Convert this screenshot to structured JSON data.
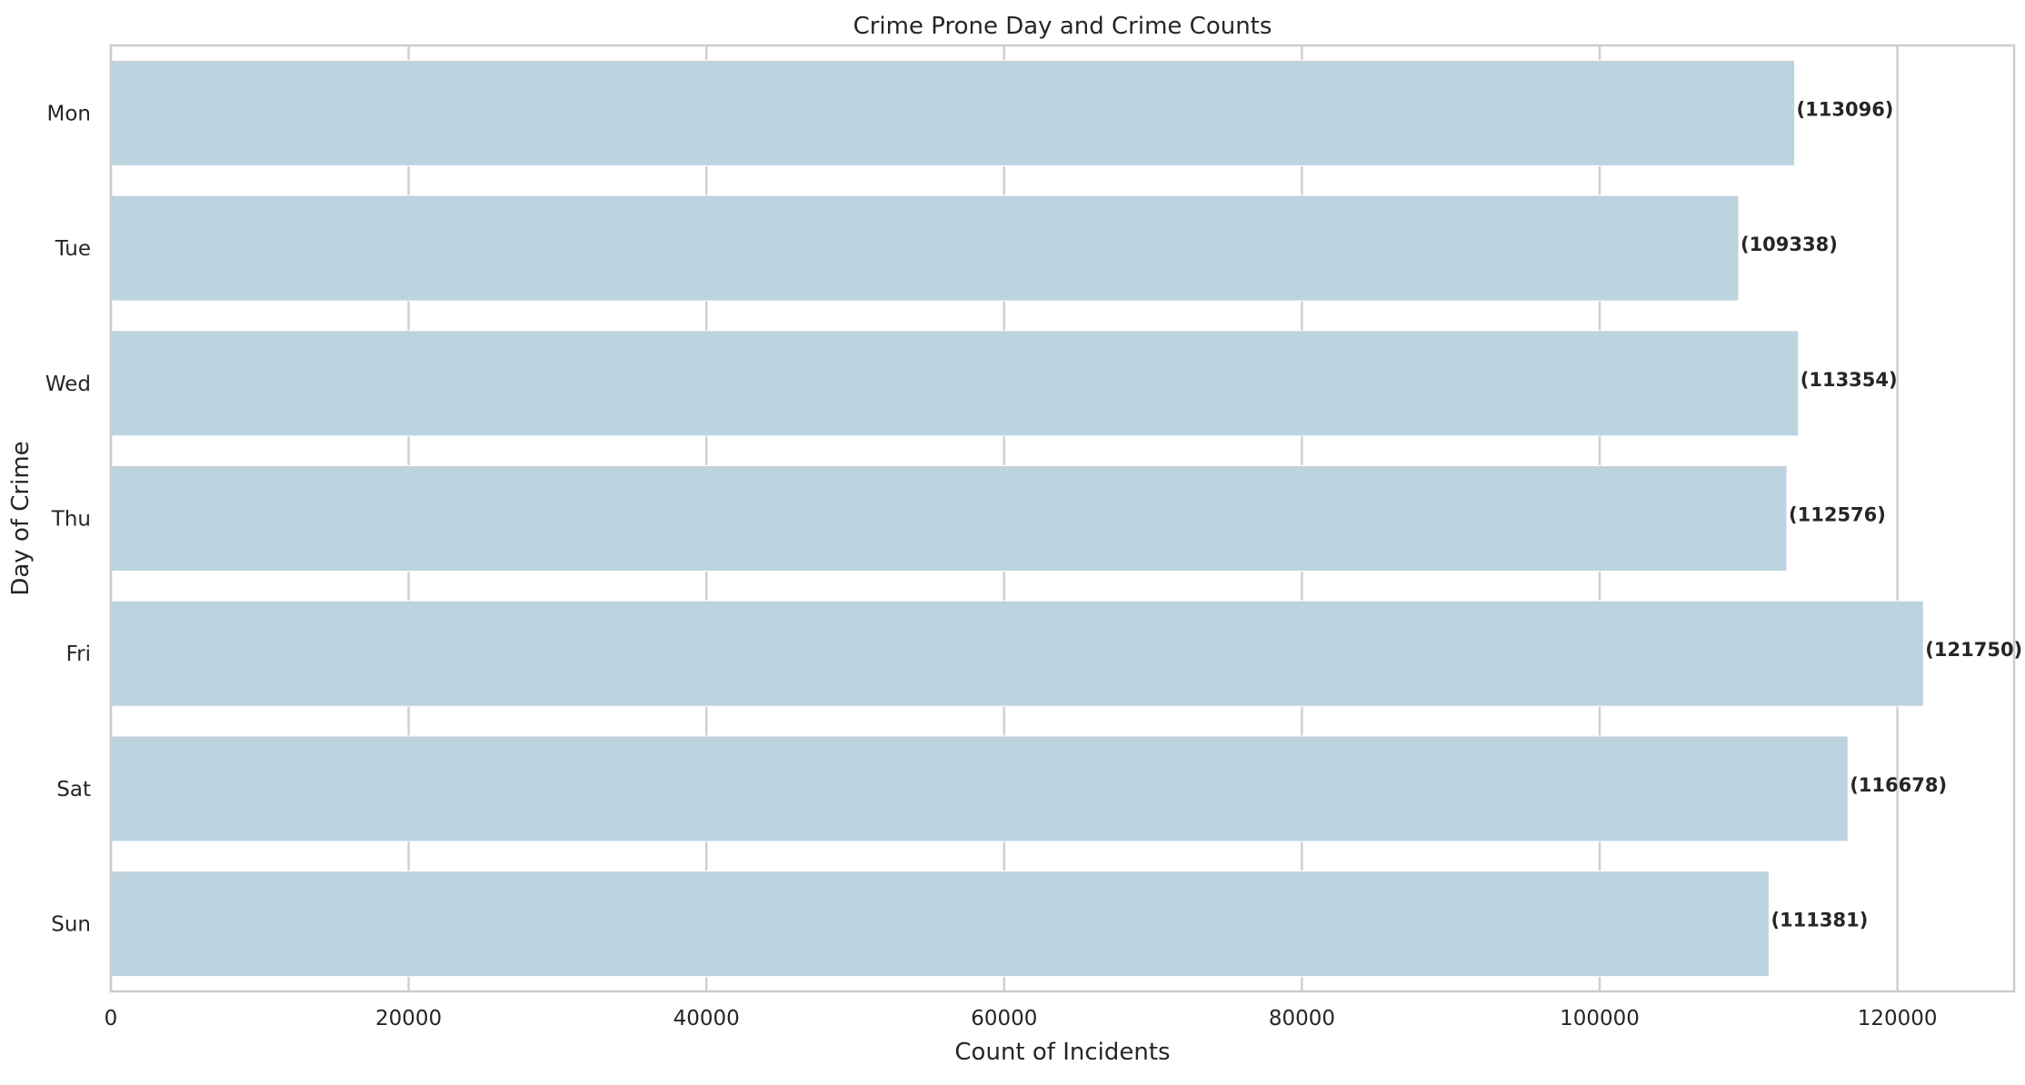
{
  "chart_data": {
    "type": "bar",
    "orientation": "horizontal",
    "title": "Crime Prone Day and Crime Counts",
    "xlabel": "Count of Incidents",
    "ylabel": "Day of Crime",
    "categories": [
      "Mon",
      "Tue",
      "Wed",
      "Thu",
      "Fri",
      "Sat",
      "Sun"
    ],
    "values": [
      113096,
      109338,
      113354,
      112576,
      121750,
      116678,
      111381
    ],
    "data_labels": [
      "(113096)",
      "(109338)",
      "(113354)",
      "(112576)",
      "(121750)",
      "(116678)",
      "(111381)"
    ],
    "x_ticks": [
      0,
      20000,
      40000,
      60000,
      80000,
      100000,
      120000
    ],
    "x_tick_labels": [
      "0",
      "20000",
      "40000",
      "60000",
      "80000",
      "100000",
      "120000"
    ],
    "xlim": [
      0,
      127837
    ],
    "grid": "vertical",
    "bar_color": "#bcd4e0",
    "grid_color": "#d0d0d0",
    "frame_color": "#cccccc"
  }
}
